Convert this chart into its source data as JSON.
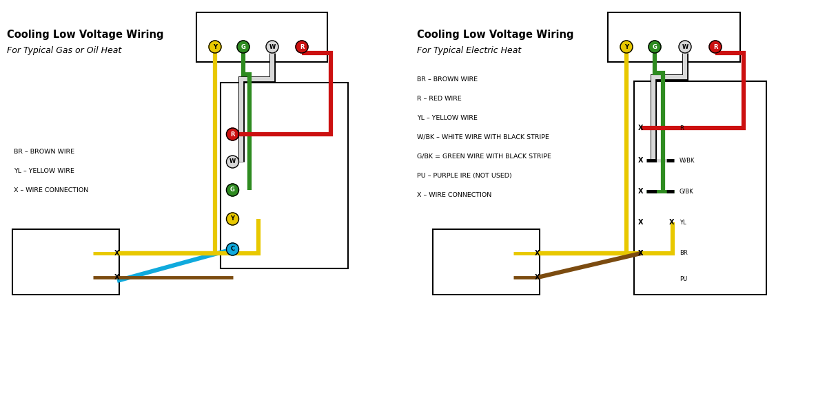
{
  "bg_color": "#ffffff",
  "title1_line1": "Cooling Low Voltage Wiring",
  "title1_line2": "For Typical Gas or Oil Heat",
  "title2_line1": "Cooling Low Voltage Wiring",
  "title2_line2": "For Typical Electric Heat",
  "legend1": [
    "BR – BROWN WIRE",
    "YL – YELLOW WIRE",
    "X – WIRE CONNECTION"
  ],
  "legend2": [
    "BR – BROWN WIRE",
    "R – RED WIRE",
    "YL – YELLOW WIRE",
    "W/BK – WHITE WIRE WITH BLACK STRIPE",
    "G/BK = GREEN WIRE WITH BLACK STRIPE",
    "PU – PURPLE IRE (NOT USED)",
    "X – WIRE CONNECTION"
  ],
  "colors": {
    "yellow": "#E8C800",
    "green": "#2E8B20",
    "white": "#d8d8d8",
    "red": "#CC1010",
    "brown": "#7B4B10",
    "cyan": "#10AADD",
    "gray": "#999999"
  },
  "lw_wire": 4.5,
  "lw_border": 1.5,
  "circle_r": 0.09
}
